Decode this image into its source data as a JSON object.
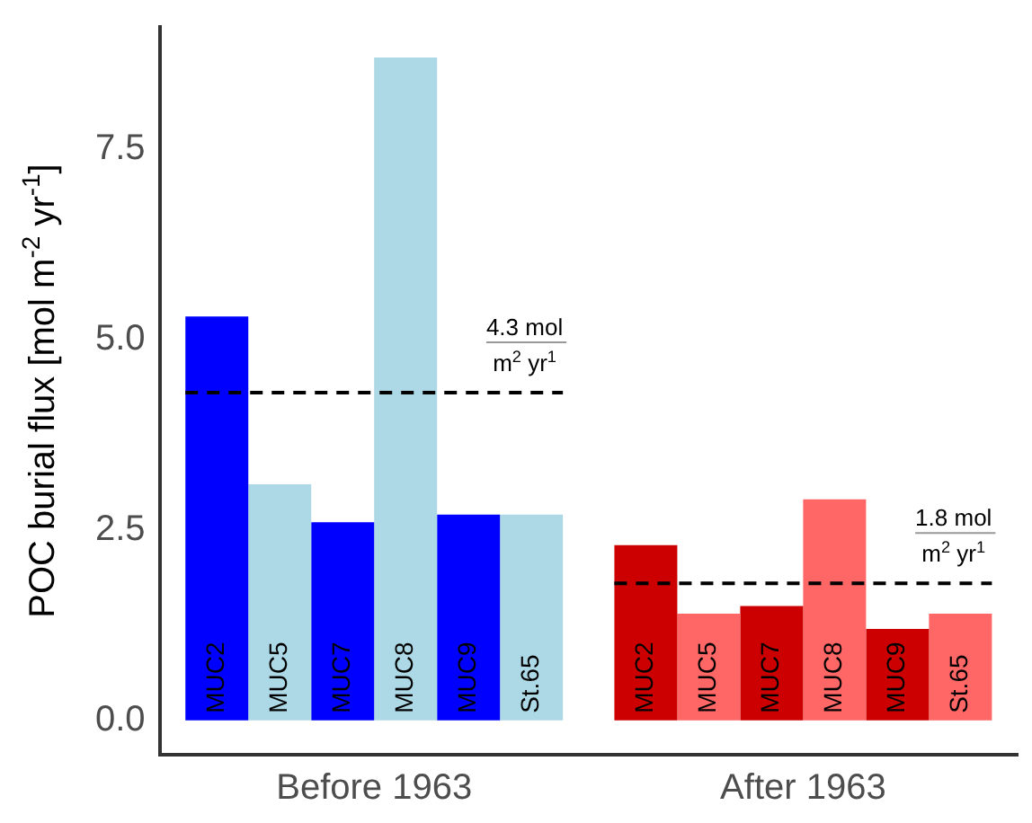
{
  "chart_data": {
    "type": "bar",
    "ylabel": "POC burial flux [mol m$^{-2}$ yr$^{-1}$]",
    "categories": [
      "Before 1963",
      "After 1963"
    ],
    "series": [
      {
        "name": "MUC2",
        "colors": [
          "#0000ff",
          "#cc0000"
        ],
        "values": [
          5.3,
          2.3
        ]
      },
      {
        "name": "MUC5",
        "colors": [
          "#add8e6",
          "#ff6666"
        ],
        "values": [
          3.1,
          1.4
        ]
      },
      {
        "name": "MUC7",
        "colors": [
          "#0000ff",
          "#cc0000"
        ],
        "values": [
          2.6,
          1.5
        ]
      },
      {
        "name": "MUC8",
        "colors": [
          "#add8e6",
          "#ff6666"
        ],
        "values": [
          8.7,
          2.9
        ]
      },
      {
        "name": "MUC9",
        "colors": [
          "#0000ff",
          "#cc0000"
        ],
        "values": [
          2.7,
          1.2
        ]
      },
      {
        "name": "St.65",
        "colors": [
          "#add8e6",
          "#ff6666"
        ],
        "values": [
          2.7,
          1.4
        ]
      }
    ],
    "ylim": [
      -0.45,
      9.1
    ],
    "yticks": [
      {
        "value": 0,
        "label": "0.0"
      },
      {
        "value": 2.5,
        "label": "2.5"
      },
      {
        "value": 5,
        "label": "5.0"
      },
      {
        "value": 7.5,
        "label": "7.5"
      }
    ],
    "ref_lines": [
      {
        "axis": "y",
        "value": 4.3,
        "label": "4.3 mol\nm$^{2}$ yr$^{1}$",
        "color": "#000000",
        "line_style": "dashed"
      },
      {
        "axis": "y",
        "value": 1.8,
        "label": "1.8 mol\nm$^{2}$ yr$^{1}$",
        "color": "#000000",
        "line_style": "dashed"
      }
    ],
    "grid": false,
    "legend": false
  }
}
